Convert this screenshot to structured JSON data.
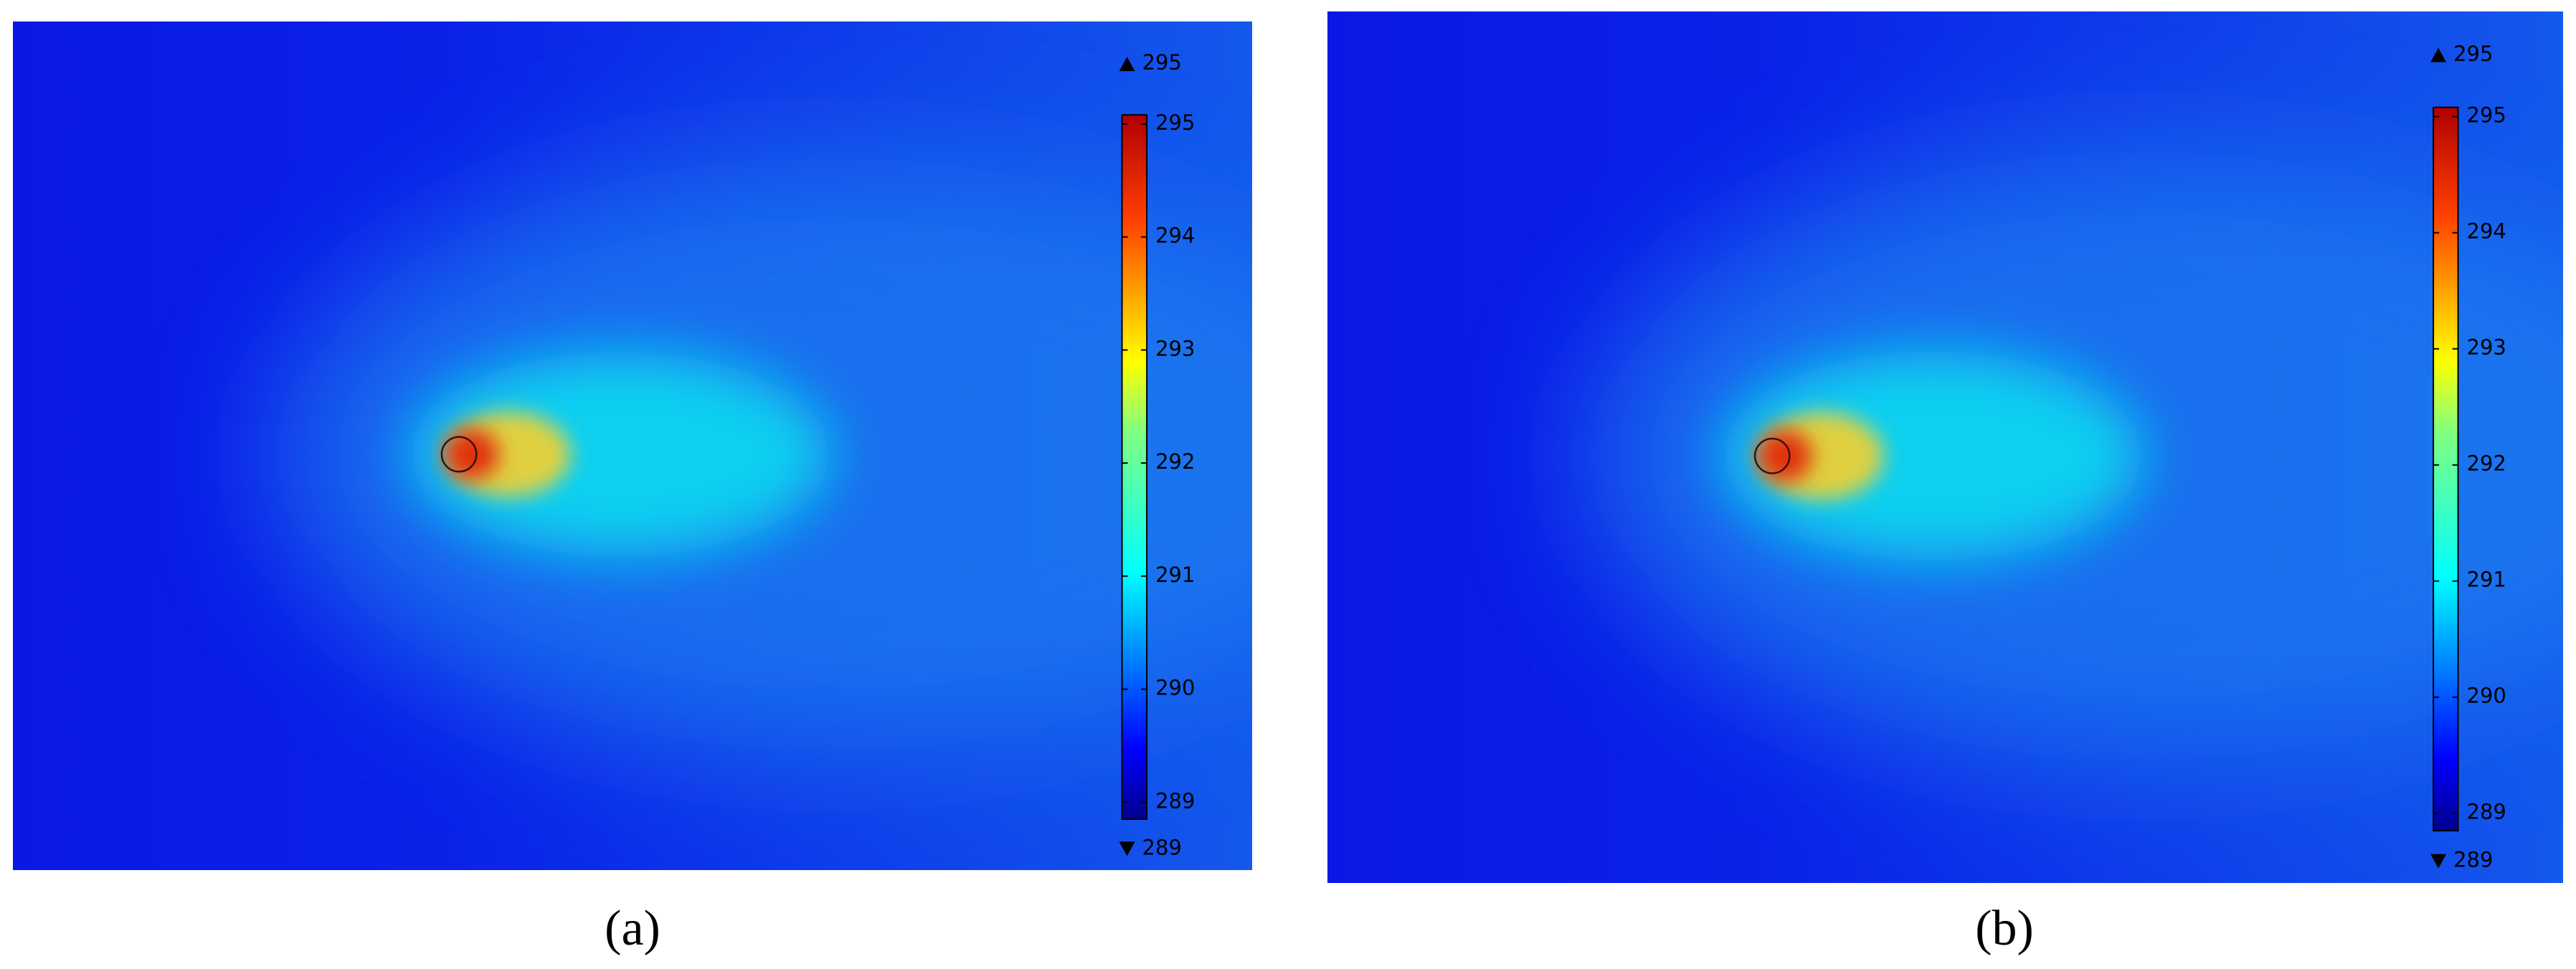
{
  "chart_data": [
    {
      "type": "heatmap",
      "label": "(a)",
      "colorbar": {
        "clim": [
          288.85,
          295.08
        ],
        "ticks": [
          289,
          290,
          291,
          292,
          293,
          294,
          295
        ],
        "max": 295,
        "min": 289
      }
    },
    {
      "type": "heatmap",
      "label": "(b)",
      "colorbar": {
        "clim": [
          288.85,
          295.08
        ],
        "ticks": [
          289,
          290,
          291,
          292,
          293,
          294,
          295
        ],
        "max": 295,
        "min": 289
      }
    }
  ]
}
